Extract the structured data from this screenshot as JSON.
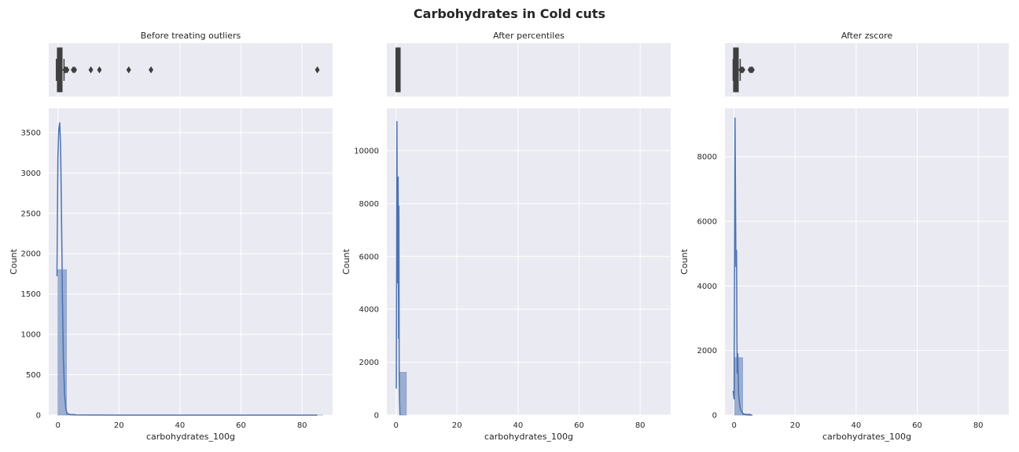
{
  "figure": {
    "title": "Carbohydrates in Cold cuts",
    "colors": {
      "axes_bg": "#EAEAF2",
      "grid": "#FFFFFF",
      "bar_fill": "#4C72B0",
      "kde_line": "#4C72B0",
      "box_color": "#3F3F3F"
    }
  },
  "chart_data": [
    {
      "type": "bar",
      "panel": "Before treating outliers",
      "title": "Before treating outliers",
      "xlabel": "carbohydrates_100g",
      "ylabel": "Count",
      "xlim": [
        -3,
        90
      ],
      "ylim": [
        0,
        3800
      ],
      "xticks": [
        0,
        20,
        40,
        60,
        80
      ],
      "yticks": [
        0,
        500,
        1000,
        1500,
        2000,
        2500,
        3000,
        3500
      ],
      "bins": [
        {
          "x0": 0,
          "x1": 2.8,
          "count": 1800
        },
        {
          "x0": 2.8,
          "x1": 5.6,
          "count": 12
        },
        {
          "x0": 5.6,
          "x1": 8.4,
          "count": 3
        },
        {
          "x0": 8.4,
          "x1": 11.2,
          "count": 2
        },
        {
          "x0": 11.2,
          "x1": 14.0,
          "count": 2
        },
        {
          "x0": 22.4,
          "x1": 25.2,
          "count": 1
        },
        {
          "x0": 28.0,
          "x1": 30.8,
          "count": 1
        },
        {
          "x0": 84.0,
          "x1": 86.8,
          "count": 1
        }
      ],
      "kde": {
        "x": [
          -0.3,
          0,
          0.3,
          0.6,
          0.9,
          1.2,
          1.5,
          1.8,
          2.2,
          2.6,
          3.0,
          4,
          6,
          10,
          20,
          40,
          60,
          85
        ],
        "y": [
          1720,
          3200,
          3550,
          3620,
          3300,
          2400,
          1400,
          700,
          250,
          80,
          25,
          5,
          2,
          1,
          0.5,
          0.3,
          0.2,
          0.2
        ]
      },
      "boxplot": {
        "median": 0.6,
        "q1": 0.2,
        "q3": 1.0,
        "whisker_low": -0.5,
        "whisker_high": 2.0,
        "outliers": [
          2.3,
          2.6,
          3.0,
          5.0,
          5.5,
          10.8,
          13.6,
          23.2,
          30.5,
          85.0
        ]
      }
    },
    {
      "type": "bar",
      "panel": "After percentiles",
      "title": "After percentiles",
      "xlabel": "carbohydrates_100g",
      "ylabel": "Count",
      "xlim": [
        -3,
        90
      ],
      "ylim": [
        0,
        11600
      ],
      "xticks": [
        0,
        20,
        40,
        60,
        80
      ],
      "yticks": [
        0,
        2000,
        4000,
        6000,
        8000,
        10000
      ],
      "bins": [
        {
          "x0": 1.2,
          "x1": 3.4,
          "count": 1620
        }
      ],
      "kde": {
        "x": [
          0.1,
          0.3,
          0.5,
          0.7,
          0.85,
          0.95,
          1.05,
          1.15,
          1.3
        ],
        "y": [
          1000,
          11100,
          5000,
          9000,
          2900,
          7900,
          1500,
          600,
          0
        ]
      },
      "boxplot": {
        "median": 0.7,
        "q1": 0.35,
        "q3": 1.0,
        "whisker_low": 0.1,
        "whisker_high": 1.3,
        "outliers": []
      }
    },
    {
      "type": "bar",
      "panel": "After zscore",
      "title": "After zscore",
      "xlabel": "carbohydrates_100g",
      "ylabel": "Count",
      "xlim": [
        -3,
        90
      ],
      "ylim": [
        0,
        9500
      ],
      "xticks": [
        0,
        20,
        40,
        60,
        80
      ],
      "yticks": [
        0,
        2000,
        4000,
        6000,
        8000
      ],
      "bins": [
        {
          "x0": 0.2,
          "x1": 2.8,
          "count": 1780
        },
        {
          "x0": 2.8,
          "x1": 5.4,
          "count": 40
        }
      ],
      "kde": {
        "x": [
          -0.3,
          0,
          0.3,
          0.6,
          0.8,
          1.0,
          1.2,
          1.5,
          2.0,
          2.6,
          3.2,
          4,
          6
        ],
        "y": [
          750,
          500,
          9200,
          4600,
          5100,
          1300,
          1900,
          600,
          200,
          80,
          30,
          10,
          0
        ]
      },
      "boxplot": {
        "median": 0.6,
        "q1": 0.2,
        "q3": 1.0,
        "whisker_low": -0.3,
        "whisker_high": 2.0,
        "outliers": [
          2.2,
          2.5,
          2.9,
          5.2,
          5.6,
          6.0
        ]
      }
    }
  ]
}
